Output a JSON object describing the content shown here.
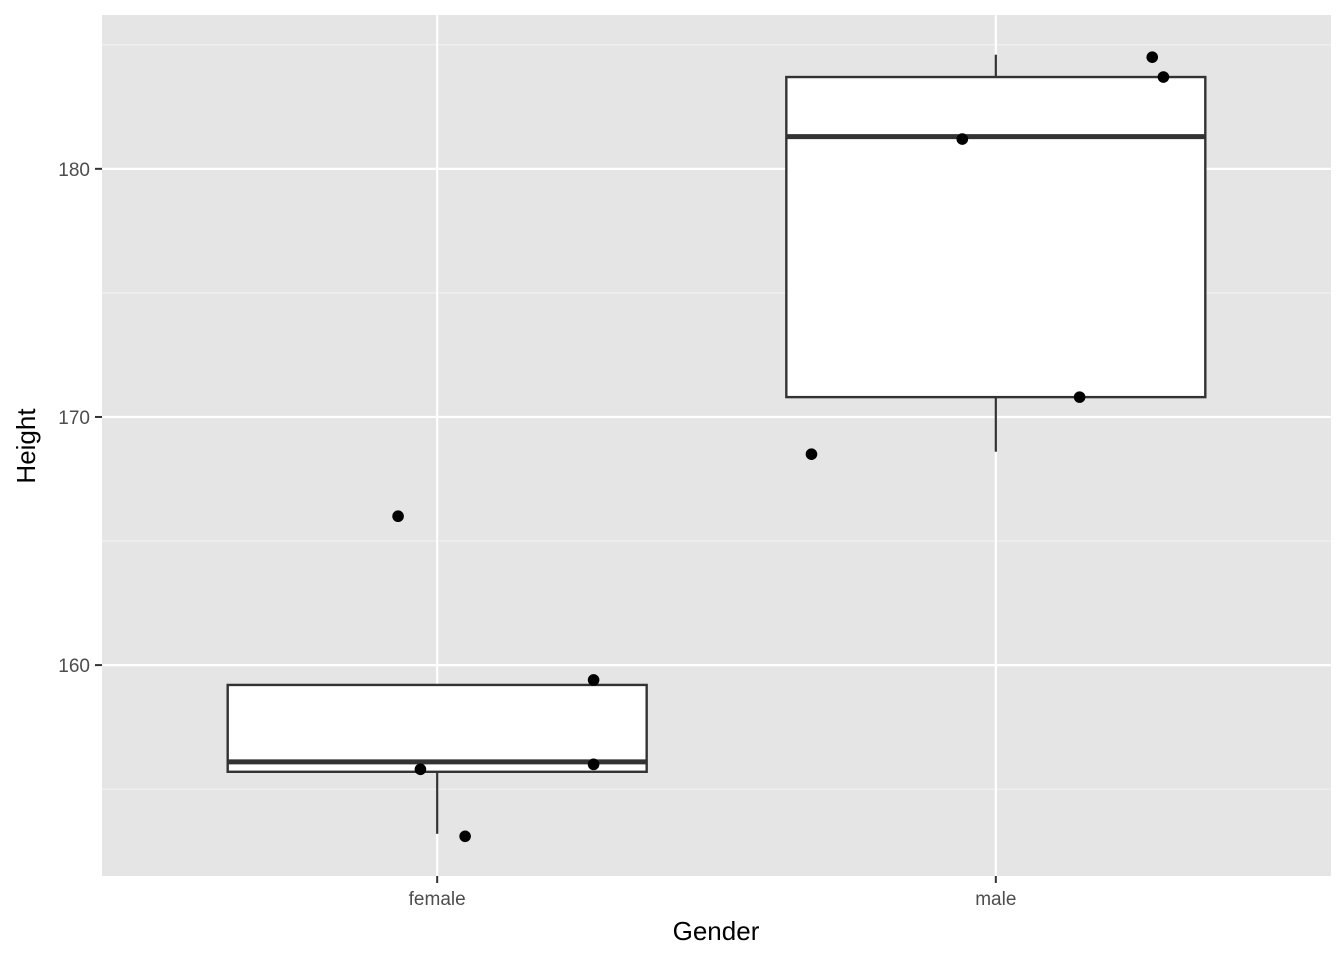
{
  "chart_data": {
    "type": "boxplot",
    "title": "",
    "xlabel": "Gender",
    "ylabel": "Height",
    "categories": [
      "female",
      "male"
    ],
    "ylim": [
      151.5,
      186.2
    ],
    "y_ticks": [
      160,
      170,
      180
    ],
    "y_minor_ticks": [
      155,
      165,
      175,
      185
    ],
    "grid": true,
    "legend": "none",
    "boxes": [
      {
        "category": "female",
        "lower_whisker": 153.2,
        "q1": 155.7,
        "median": 156.1,
        "q3": 159.2,
        "upper_whisker": 159.2
      },
      {
        "category": "male",
        "lower_whisker": 168.6,
        "q1": 170.8,
        "median": 181.3,
        "q3": 183.7,
        "upper_whisker": 184.6
      }
    ],
    "points": [
      {
        "category": "female",
        "jitter": -0.07,
        "y": 166.0
      },
      {
        "category": "female",
        "jitter": -0.03,
        "y": 155.8
      },
      {
        "category": "female",
        "jitter": 0.05,
        "y": 153.1
      },
      {
        "category": "female",
        "jitter": 0.28,
        "y": 159.4
      },
      {
        "category": "female",
        "jitter": 0.28,
        "y": 156.0
      },
      {
        "category": "male",
        "jitter": -0.33,
        "y": 168.5
      },
      {
        "category": "male",
        "jitter": -0.06,
        "y": 181.2
      },
      {
        "category": "male",
        "jitter": 0.15,
        "y": 170.8
      },
      {
        "category": "male",
        "jitter": 0.28,
        "y": 184.5
      },
      {
        "category": "male",
        "jitter": 0.3,
        "y": 183.7
      }
    ],
    "colors": {
      "panel_background": "#e5e5e5",
      "grid_major": "#ffffff",
      "grid_minor": "#f2f2f2",
      "box_fill": "#ffffff",
      "box_stroke": "#333333",
      "point": "#000000",
      "tick": "#333333"
    }
  }
}
